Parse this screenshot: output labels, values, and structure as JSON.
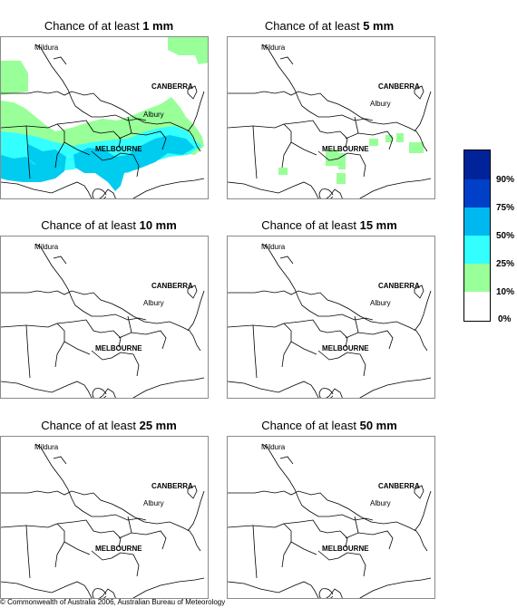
{
  "colors": {
    "bins": [
      "#ffffff",
      "#99ff99",
      "#33ffff",
      "#00ccf0",
      "#0077ee",
      "#0040c8",
      "#00239a"
    ],
    "border": "#000000",
    "frame": "#8a8a8a"
  },
  "legend": {
    "labels": [
      "90%",
      "75%",
      "50%",
      "25%",
      "10%",
      "0%"
    ]
  },
  "map_labels": {
    "mildura": "Mildura",
    "canberra": "CANBERRA",
    "albury": "Albury",
    "melbourne": "MELBOURNE"
  },
  "panels": [
    {
      "prefix": "Chance of at least ",
      "amount": "1 mm"
    },
    {
      "prefix": "Chance of at least ",
      "amount": "5 mm"
    },
    {
      "prefix": "Chance of at least ",
      "amount": "10 mm"
    },
    {
      "prefix": "Chance of at least ",
      "amount": "15 mm"
    },
    {
      "prefix": "Chance of at least ",
      "amount": "25 mm"
    },
    {
      "prefix": "Chance of at least ",
      "amount": "50 mm"
    }
  ],
  "footer": {
    "copyright": "© Commonwealth of Australia 2006, Australian Bureau of Meteorology"
  }
}
